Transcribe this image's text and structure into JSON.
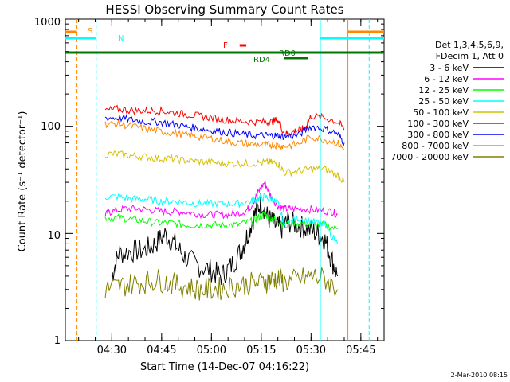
{
  "chart_data": {
    "type": "line",
    "title": "HESSI Observing Summary Count Rates",
    "xlabel": "Start Time (14-Dec-07 04:16:22)",
    "ylabel": "Count Rate (s⁻¹ detector⁻¹)",
    "y_scale": "log",
    "ylim": [
      1,
      1000
    ],
    "y_ticks": [
      "1",
      "10",
      "100",
      "1000"
    ],
    "xlim_minutes_after_0416": [
      0,
      96
    ],
    "x_ticks": [
      {
        "label": "04:30",
        "minute": 14
      },
      {
        "label": "04:45",
        "minute": 29
      },
      {
        "label": "05:00",
        "minute": 44
      },
      {
        "label": "05:15",
        "minute": 59
      },
      {
        "label": "05:30",
        "minute": 74
      },
      {
        "label": "05:45",
        "minute": 89
      }
    ],
    "legend_header": [
      "Det 1,3,4,5,6,9,",
      "FDecim 1, Att 0"
    ],
    "series": [
      {
        "name": "3 - 6 keV",
        "color": "#000000",
        "points": [
          [
            14,
            4
          ],
          [
            16,
            6.5
          ],
          [
            20,
            6.8
          ],
          [
            24,
            7
          ],
          [
            27,
            8
          ],
          [
            30,
            9.8
          ],
          [
            33,
            8
          ],
          [
            36,
            6
          ],
          [
            40,
            5
          ],
          [
            44,
            4.5
          ],
          [
            47,
            4
          ],
          [
            50,
            5
          ],
          [
            53,
            7
          ],
          [
            55,
            10
          ],
          [
            57,
            15
          ],
          [
            59,
            20
          ],
          [
            61,
            14
          ],
          [
            63,
            12
          ],
          [
            65,
            11
          ],
          [
            67,
            13
          ],
          [
            70,
            12
          ],
          [
            73,
            11
          ],
          [
            76,
            10
          ],
          [
            78,
            9
          ],
          [
            80,
            6
          ],
          [
            82,
            4
          ]
        ]
      },
      {
        "name": "6 - 12 keV",
        "color": "#ff00ff",
        "points": [
          [
            12,
            15
          ],
          [
            14,
            16
          ],
          [
            18,
            17
          ],
          [
            22,
            17
          ],
          [
            26,
            16.5
          ],
          [
            30,
            16
          ],
          [
            34,
            16
          ],
          [
            38,
            15.5
          ],
          [
            42,
            15
          ],
          [
            46,
            15
          ],
          [
            50,
            15
          ],
          [
            54,
            16
          ],
          [
            56,
            18
          ],
          [
            58,
            24
          ],
          [
            60,
            30
          ],
          [
            62,
            22
          ],
          [
            64,
            18
          ],
          [
            66,
            17
          ],
          [
            68,
            17
          ],
          [
            72,
            17
          ],
          [
            76,
            16.5
          ],
          [
            80,
            16
          ],
          [
            82,
            15
          ]
        ]
      },
      {
        "name": "12 - 25 keV",
        "color": "#00ff00",
        "points": [
          [
            12,
            14
          ],
          [
            16,
            14
          ],
          [
            20,
            13.5
          ],
          [
            24,
            13
          ],
          [
            28,
            12.5
          ],
          [
            32,
            12.5
          ],
          [
            36,
            12
          ],
          [
            40,
            12
          ],
          [
            44,
            12
          ],
          [
            48,
            12
          ],
          [
            52,
            12
          ],
          [
            56,
            13
          ],
          [
            58,
            14
          ],
          [
            60,
            15
          ],
          [
            62,
            14
          ],
          [
            64,
            13
          ],
          [
            66,
            12.5
          ],
          [
            70,
            12.5
          ],
          [
            74,
            12
          ],
          [
            78,
            12
          ],
          [
            82,
            11
          ]
        ]
      },
      {
        "name": "25 - 50 keV",
        "color": "#00ffff",
        "points": [
          [
            12,
            22
          ],
          [
            16,
            22
          ],
          [
            20,
            21
          ],
          [
            24,
            21
          ],
          [
            28,
            20
          ],
          [
            32,
            20
          ],
          [
            36,
            19.5
          ],
          [
            40,
            19
          ],
          [
            44,
            19
          ],
          [
            48,
            19
          ],
          [
            52,
            19
          ],
          [
            56,
            20
          ],
          [
            58,
            21
          ],
          [
            60,
            22
          ],
          [
            62,
            21
          ],
          [
            64,
            19
          ],
          [
            66,
            12
          ],
          [
            70,
            14
          ],
          [
            74,
            13
          ],
          [
            78,
            12
          ],
          [
            82,
            8
          ]
        ]
      },
      {
        "name": "50 - 100 keV",
        "color": "#d4c000",
        "points": [
          [
            12,
            55
          ],
          [
            16,
            55
          ],
          [
            20,
            53
          ],
          [
            24,
            52
          ],
          [
            28,
            50
          ],
          [
            32,
            50
          ],
          [
            36,
            48
          ],
          [
            40,
            47
          ],
          [
            44,
            46
          ],
          [
            48,
            45
          ],
          [
            52,
            45
          ],
          [
            56,
            45
          ],
          [
            60,
            46
          ],
          [
            62,
            46
          ],
          [
            64,
            45
          ],
          [
            66,
            37
          ],
          [
            70,
            38
          ],
          [
            74,
            40
          ],
          [
            78,
            40
          ],
          [
            82,
            35
          ],
          [
            84,
            30
          ]
        ]
      },
      {
        "name": "100 - 300 keV",
        "color": "#ff0000",
        "points": [
          [
            12,
            140
          ],
          [
            16,
            145
          ],
          [
            20,
            140
          ],
          [
            24,
            140
          ],
          [
            28,
            140
          ],
          [
            32,
            135
          ],
          [
            36,
            130
          ],
          [
            40,
            125
          ],
          [
            44,
            120
          ],
          [
            48,
            115
          ],
          [
            52,
            112
          ],
          [
            56,
            110
          ],
          [
            60,
            110
          ],
          [
            62,
            110
          ],
          [
            64,
            115
          ],
          [
            66,
            85
          ],
          [
            68,
            88
          ],
          [
            70,
            92
          ],
          [
            72,
            95
          ],
          [
            74,
            125
          ],
          [
            78,
            120
          ],
          [
            82,
            110
          ],
          [
            84,
            95
          ]
        ]
      },
      {
        "name": "300 - 800 keV",
        "color": "#0000ff",
        "points": [
          [
            12,
            120
          ],
          [
            16,
            120
          ],
          [
            20,
            115
          ],
          [
            24,
            110
          ],
          [
            28,
            110
          ],
          [
            32,
            105
          ],
          [
            36,
            100
          ],
          [
            40,
            95
          ],
          [
            44,
            92
          ],
          [
            48,
            88
          ],
          [
            52,
            85
          ],
          [
            56,
            82
          ],
          [
            60,
            82
          ],
          [
            62,
            82
          ],
          [
            64,
            82
          ],
          [
            66,
            80
          ],
          [
            70,
            82
          ],
          [
            74,
            100
          ],
          [
            78,
            95
          ],
          [
            82,
            85
          ],
          [
            84,
            70
          ]
        ]
      },
      {
        "name": "800 - 7000 keV",
        "color": "#ff8800",
        "points": [
          [
            12,
            105
          ],
          [
            16,
            105
          ],
          [
            20,
            100
          ],
          [
            24,
            95
          ],
          [
            28,
            90
          ],
          [
            32,
            87
          ],
          [
            36,
            83
          ],
          [
            40,
            80
          ],
          [
            44,
            77
          ],
          [
            48,
            73
          ],
          [
            52,
            70
          ],
          [
            56,
            68
          ],
          [
            60,
            67
          ],
          [
            62,
            67
          ],
          [
            64,
            67
          ],
          [
            66,
            65
          ],
          [
            70,
            68
          ],
          [
            74,
            80
          ],
          [
            78,
            75
          ],
          [
            82,
            70
          ],
          [
            84,
            60
          ]
        ]
      },
      {
        "name": "7000 - 20000 keV",
        "color": "#808000",
        "points": [
          [
            12,
            3
          ],
          [
            16,
            3.2
          ],
          [
            20,
            3.4
          ],
          [
            24,
            3.5
          ],
          [
            28,
            3.7
          ],
          [
            32,
            3.4
          ],
          [
            36,
            3.2
          ],
          [
            40,
            3
          ],
          [
            44,
            3
          ],
          [
            48,
            3.1
          ],
          [
            52,
            3.3
          ],
          [
            56,
            3.4
          ],
          [
            60,
            3.5
          ],
          [
            62,
            3.7
          ],
          [
            64,
            3.8
          ],
          [
            66,
            3.5
          ],
          [
            70,
            3.7
          ],
          [
            74,
            4
          ],
          [
            78,
            3.8
          ],
          [
            82,
            3
          ]
        ]
      }
    ],
    "annotations": [
      {
        "text": "S",
        "color": "#ff8800"
      },
      {
        "text": "N",
        "color": "#00ffff"
      },
      {
        "text": "F",
        "color": "#ff0000"
      },
      {
        "text": "RD0",
        "color": "#007700"
      },
      {
        "text": "RD4",
        "color": "#007700"
      }
    ]
  },
  "footer": {
    "date_stamp": "2-Mar-2010 08:15"
  }
}
